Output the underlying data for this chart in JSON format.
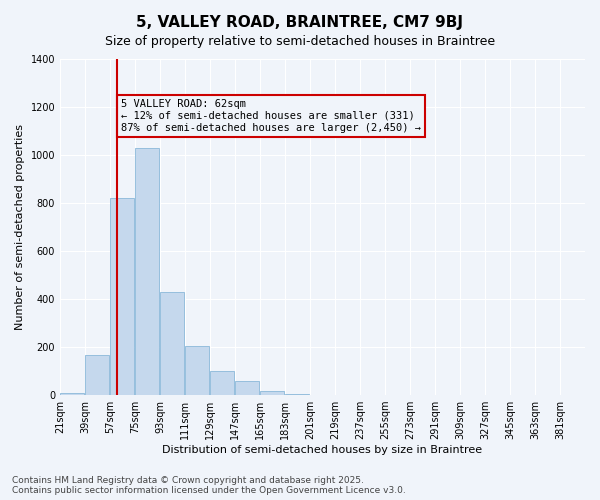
{
  "title": "5, VALLEY ROAD, BRAINTREE, CM7 9BJ",
  "subtitle": "Size of property relative to semi-detached houses in Braintree",
  "xlabel": "Distribution of semi-detached houses by size in Braintree",
  "ylabel": "Number of semi-detached properties",
  "bin_labels": [
    "21sqm",
    "39sqm",
    "57sqm",
    "75sqm",
    "93sqm",
    "111sqm",
    "129sqm",
    "147sqm",
    "165sqm",
    "183sqm",
    "201sqm",
    "219sqm",
    "237sqm",
    "255sqm",
    "273sqm",
    "291sqm",
    "309sqm",
    "327sqm",
    "345sqm",
    "363sqm",
    "381sqm"
  ],
  "bin_edges": [
    21,
    39,
    57,
    75,
    93,
    111,
    129,
    147,
    165,
    183,
    201,
    219,
    237,
    255,
    273,
    291,
    309,
    327,
    345,
    363,
    381
  ],
  "bar_values": [
    10,
    165,
    820,
    1030,
    430,
    205,
    100,
    60,
    15,
    5,
    2,
    1,
    0,
    0,
    0,
    0,
    0,
    0,
    0,
    0
  ],
  "bar_color": "#c5d8ed",
  "bar_edge_color": "#7bafd4",
  "property_size": 62,
  "property_line_color": "#cc0000",
  "annotation_text": "5 VALLEY ROAD: 62sqm\n← 12% of semi-detached houses are smaller (331)\n87% of semi-detached houses are larger (2,450) →",
  "annotation_box_color": "#cc0000",
  "ylim": [
    0,
    1400
  ],
  "yticks": [
    0,
    200,
    400,
    600,
    800,
    1000,
    1200,
    1400
  ],
  "footnote": "Contains HM Land Registry data © Crown copyright and database right 2025.\nContains public sector information licensed under the Open Government Licence v3.0.",
  "background_color": "#f0f4fa",
  "grid_color": "#ffffff",
  "title_fontsize": 11,
  "subtitle_fontsize": 9,
  "axis_label_fontsize": 8,
  "tick_fontsize": 7,
  "footnote_fontsize": 6.5
}
